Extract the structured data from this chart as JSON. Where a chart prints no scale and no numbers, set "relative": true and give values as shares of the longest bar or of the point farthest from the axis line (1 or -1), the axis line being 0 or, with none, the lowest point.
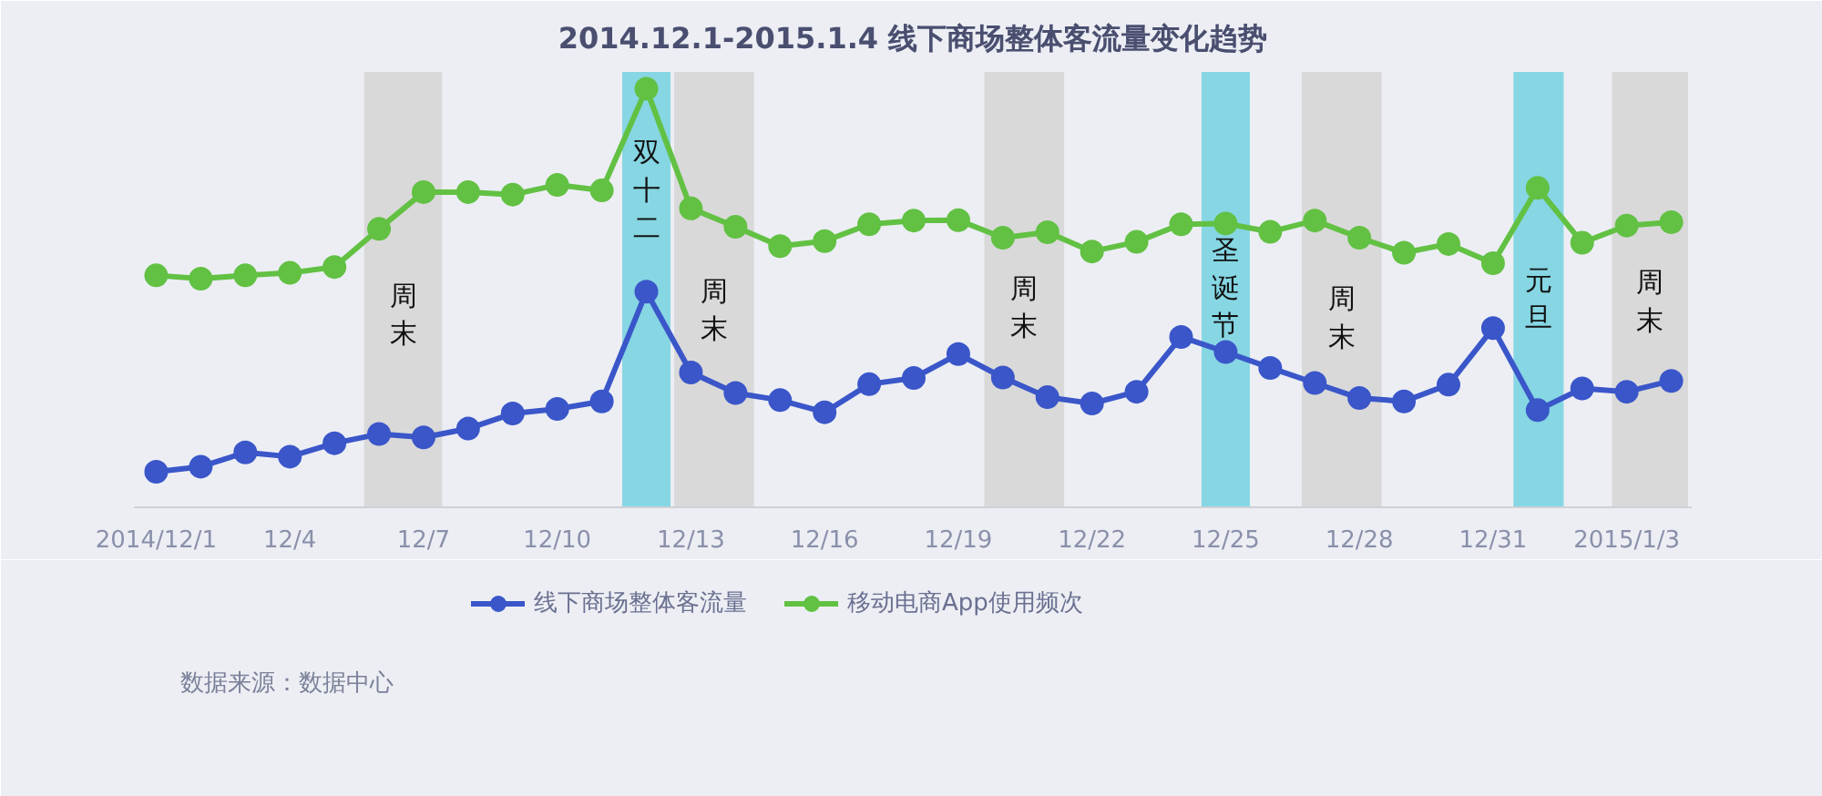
{
  "chart_data": {
    "type": "line",
    "title": "2014.12.1-2015.1.4 线下商场整体客流量变化趋势",
    "relative": true,
    "marker": "circle",
    "legend": "bottom",
    "x": [
      "2014-12-01",
      "2014-12-02",
      "2014-12-03",
      "2014-12-04",
      "2014-12-05",
      "2014-12-06",
      "2014-12-07",
      "2014-12-08",
      "2014-12-09",
      "2014-12-10",
      "2014-12-11",
      "2014-12-12",
      "2014-12-13",
      "2014-12-14",
      "2014-12-15",
      "2014-12-16",
      "2014-12-17",
      "2014-12-18",
      "2014-12-19",
      "2014-12-20",
      "2014-12-21",
      "2014-12-22",
      "2014-12-23",
      "2014-12-24",
      "2014-12-25",
      "2014-12-26",
      "2014-12-27",
      "2014-12-28",
      "2014-12-29",
      "2014-12-30",
      "2014-12-31",
      "2015-01-01",
      "2015-01-02",
      "2015-01-03",
      "2015-01-04"
    ],
    "xlim": [
      "2014-11-30T12:00",
      "2015-01-04T11:00"
    ],
    "xticks": [
      {
        "value": "2014-12-01",
        "label": "2014/12/1"
      },
      {
        "value": "2014-12-04",
        "label": "12/4"
      },
      {
        "value": "2014-12-07",
        "label": "12/7"
      },
      {
        "value": "2014-12-10",
        "label": "12/10"
      },
      {
        "value": "2014-12-13",
        "label": "12/13"
      },
      {
        "value": "2014-12-16",
        "label": "12/16"
      },
      {
        "value": "2014-12-19",
        "label": "12/19"
      },
      {
        "value": "2014-12-22",
        "label": "12/22"
      },
      {
        "value": "2014-12-25",
        "label": "12/25"
      },
      {
        "value": "2014-12-28",
        "label": "12/28"
      },
      {
        "value": "2014-12-31",
        "label": "12/31"
      },
      {
        "value": "2015-01-03",
        "label": "2015/1/3"
      }
    ],
    "series": [
      {
        "name": "线下商场整体客流量",
        "color": "#3a56c9",
        "values": [
          0.085,
          0.097,
          0.131,
          0.121,
          0.153,
          0.175,
          0.167,
          0.188,
          0.224,
          0.235,
          0.253,
          0.515,
          0.322,
          0.273,
          0.256,
          0.227,
          0.294,
          0.309,
          0.366,
          0.31,
          0.263,
          0.248,
          0.276,
          0.407,
          0.371,
          0.333,
          0.297,
          0.261,
          0.253,
          0.293,
          0.428,
          0.232,
          0.284,
          0.276,
          0.302
        ]
      },
      {
        "name": "移动电商App使用频次",
        "color": "#62c143",
        "values": [
          0.554,
          0.546,
          0.554,
          0.56,
          0.574,
          0.665,
          0.753,
          0.753,
          0.747,
          0.77,
          0.757,
          1.0,
          0.714,
          0.67,
          0.624,
          0.636,
          0.676,
          0.685,
          0.686,
          0.644,
          0.657,
          0.611,
          0.634,
          0.676,
          0.678,
          0.658,
          0.685,
          0.644,
          0.608,
          0.629,
          0.583,
          0.763,
          0.632,
          0.673,
          0.681
        ]
      }
    ],
    "bands": [
      {
        "axis": "x",
        "from": "2014-12-05T16:00",
        "to": "2014-12-07T10:00",
        "label": "周末",
        "color": "#d9d9d9"
      },
      {
        "axis": "x",
        "from": "2014-12-11T11:00",
        "to": "2014-12-12T13:00",
        "label": "双十二",
        "color": "#86d6e3"
      },
      {
        "axis": "x",
        "from": "2014-12-12T15:00",
        "to": "2014-12-14T10:00",
        "label": "周末",
        "color": "#d9d9d9"
      },
      {
        "axis": "x",
        "from": "2014-12-19T14:00",
        "to": "2014-12-21T09:00",
        "label": "周末",
        "color": "#d9d9d9"
      },
      {
        "axis": "x",
        "from": "2014-12-24T11:00",
        "to": "2014-12-25T13:00",
        "label": "圣诞节",
        "color": "#86d6e3"
      },
      {
        "axis": "x",
        "from": "2014-12-26T17:00",
        "to": "2014-12-28T12:00",
        "label": "周末",
        "color": "#d9d9d9"
      },
      {
        "axis": "x",
        "from": "2014-12-31T11:00",
        "to": "2015-01-01T14:00",
        "label": "元旦",
        "color": "#86d6e3"
      },
      {
        "axis": "x",
        "from": "2015-01-02T16:00",
        "to": "2015-01-04T09:00",
        "label": "周末",
        "color": "#d9d9d9"
      }
    ],
    "annotations": [
      "数据来源：数据中心"
    ]
  }
}
